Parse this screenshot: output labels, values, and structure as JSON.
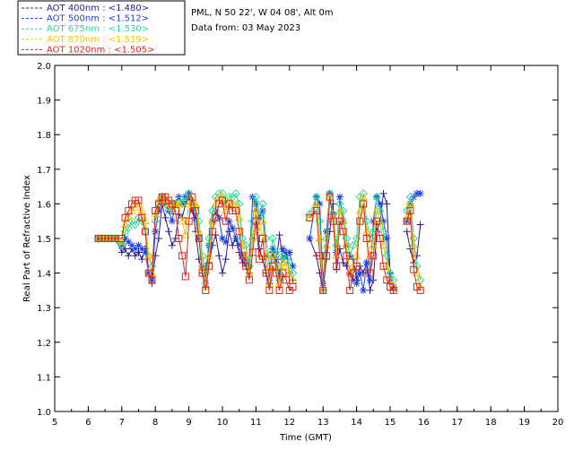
{
  "chart_data": {
    "type": "line",
    "xlabel": "Time (GMT)",
    "ylabel": "Real Part of Refractive Index",
    "xlim": [
      5,
      20
    ],
    "ylim": [
      1.0,
      2.0
    ],
    "xticks": [
      "5",
      "6",
      "7",
      "8",
      "9",
      "10",
      "11",
      "12",
      "13",
      "14",
      "15",
      "16",
      "17",
      "18",
      "19",
      "20"
    ],
    "yticks": [
      "1.0",
      "1.1",
      "1.2",
      "1.3",
      "1.4",
      "1.5",
      "1.6",
      "1.7",
      "1.8",
      "1.9",
      "2.0"
    ],
    "grid": false,
    "legend_position": "top-left",
    "info_lines": [
      "PML, N 50 22', W 04 08', Alt 0m",
      "Data from: 03 May 2023"
    ],
    "series": [
      {
        "name": "AOT  400nm : <1.480>",
        "color": "#2e1a8c",
        "marker": "plus",
        "x": [
          6.3,
          6.4,
          6.5,
          6.6,
          6.7,
          6.8,
          7.0,
          7.1,
          7.2,
          7.3,
          7.4,
          7.5,
          7.6,
          7.7,
          7.8,
          7.9,
          8.0,
          8.1,
          8.2,
          8.3,
          8.4,
          8.5,
          8.6,
          8.7,
          8.8,
          8.9,
          9.0,
          9.1,
          9.2,
          9.3,
          9.4,
          9.5,
          9.6,
          9.7,
          9.8,
          9.9,
          10.0,
          10.1,
          10.2,
          10.3,
          10.4,
          10.5,
          10.6,
          10.7,
          10.8,
          10.9,
          11.0,
          11.1,
          11.2,
          11.3,
          11.4,
          11.5,
          11.6,
          11.7,
          11.8,
          11.9,
          12.0,
          12.1,
          null,
          12.6,
          12.8,
          12.9,
          13.0,
          13.1,
          13.2,
          13.3,
          13.4,
          13.5,
          13.6,
          13.7,
          13.8,
          13.9,
          14.0,
          14.1,
          14.2,
          14.3,
          14.4,
          14.5,
          14.6,
          14.7,
          14.8,
          14.9,
          15.0,
          15.1,
          null,
          15.5,
          15.6,
          15.7,
          15.8,
          15.9
        ],
        "y": [
          1.5,
          1.5,
          1.5,
          1.5,
          1.5,
          1.5,
          1.46,
          1.47,
          1.45,
          1.47,
          1.45,
          1.46,
          1.44,
          1.47,
          1.4,
          1.37,
          1.45,
          1.5,
          1.6,
          1.56,
          1.52,
          1.48,
          1.5,
          1.57,
          1.56,
          1.6,
          1.62,
          1.6,
          1.52,
          1.44,
          1.4,
          1.36,
          1.43,
          1.48,
          1.51,
          1.45,
          1.4,
          1.44,
          1.52,
          1.48,
          1.5,
          1.46,
          1.43,
          1.42,
          1.4,
          1.5,
          1.58,
          1.47,
          1.44,
          1.4,
          1.37,
          1.46,
          1.43,
          1.51,
          1.44,
          1.46,
          1.4,
          1.38,
          null,
          1.5,
          1.45,
          1.4,
          1.35,
          1.44,
          1.52,
          1.6,
          1.41,
          1.47,
          1.43,
          1.42,
          1.45,
          1.44,
          1.38,
          1.42,
          1.4,
          1.43,
          1.35,
          1.38,
          1.52,
          1.55,
          1.63,
          1.6,
          1.4,
          1.35,
          null,
          1.52,
          1.47,
          1.43,
          1.45,
          1.54
        ]
      },
      {
        "name": "AOT  500nm : <1.512>",
        "color": "#1a3fe6",
        "marker": "star",
        "x": [
          6.3,
          6.4,
          6.5,
          6.6,
          6.7,
          6.8,
          7.0,
          7.1,
          7.2,
          7.3,
          7.4,
          7.5,
          7.6,
          7.7,
          7.8,
          7.9,
          8.0,
          8.1,
          8.2,
          8.3,
          8.4,
          8.5,
          8.6,
          8.7,
          8.8,
          8.9,
          9.0,
          9.1,
          9.2,
          9.3,
          9.4,
          9.5,
          9.6,
          9.7,
          9.8,
          9.9,
          10.0,
          10.1,
          10.2,
          10.3,
          10.4,
          10.5,
          10.6,
          10.7,
          10.8,
          10.9,
          11.0,
          11.1,
          11.2,
          11.3,
          11.4,
          11.5,
          11.6,
          11.7,
          11.8,
          11.9,
          12.0,
          12.1,
          null,
          12.6,
          12.8,
          12.9,
          13.0,
          13.1,
          13.2,
          13.3,
          13.4,
          13.5,
          13.6,
          13.7,
          13.8,
          13.9,
          14.0,
          14.1,
          14.2,
          14.3,
          14.4,
          14.5,
          14.6,
          14.7,
          14.8,
          14.9,
          15.0,
          15.1,
          null,
          15.5,
          15.6,
          15.7,
          15.8,
          15.9
        ],
        "y": [
          1.5,
          1.5,
          1.5,
          1.5,
          1.5,
          1.5,
          1.48,
          1.5,
          1.49,
          1.48,
          1.47,
          1.48,
          1.47,
          1.46,
          1.4,
          1.38,
          1.52,
          1.58,
          1.62,
          1.6,
          1.58,
          1.55,
          1.6,
          1.62,
          1.6,
          1.62,
          1.63,
          1.58,
          1.56,
          1.5,
          1.42,
          1.37,
          1.48,
          1.55,
          1.58,
          1.56,
          1.5,
          1.49,
          1.55,
          1.53,
          1.5,
          1.48,
          1.45,
          1.44,
          1.42,
          1.62,
          1.6,
          1.56,
          1.58,
          1.45,
          1.38,
          1.47,
          1.44,
          1.38,
          1.47,
          1.45,
          1.46,
          1.42,
          null,
          1.5,
          1.62,
          1.6,
          1.37,
          1.52,
          1.63,
          1.57,
          1.46,
          1.62,
          1.55,
          1.48,
          1.4,
          1.38,
          1.37,
          1.4,
          1.35,
          1.43,
          1.38,
          1.55,
          1.62,
          1.6,
          1.55,
          1.5,
          1.38,
          1.36,
          null,
          1.55,
          1.6,
          1.62,
          1.63,
          1.63
        ]
      },
      {
        "name": "AOT  675nm : <1.530>",
        "color": "#22d9a0",
        "marker": "diamond",
        "x": [
          6.3,
          6.4,
          6.5,
          6.6,
          6.7,
          6.8,
          7.0,
          7.1,
          7.2,
          7.3,
          7.4,
          7.5,
          7.6,
          7.7,
          7.8,
          7.9,
          8.0,
          8.1,
          8.2,
          8.3,
          8.4,
          8.5,
          8.6,
          8.7,
          8.8,
          8.9,
          9.0,
          9.1,
          9.2,
          9.3,
          9.4,
          9.5,
          9.6,
          9.7,
          9.8,
          9.9,
          10.0,
          10.1,
          10.2,
          10.3,
          10.4,
          10.5,
          10.6,
          10.7,
          10.8,
          10.9,
          11.0,
          11.1,
          11.2,
          11.3,
          11.4,
          11.5,
          11.6,
          11.7,
          11.8,
          11.9,
          12.0,
          12.1,
          null,
          12.6,
          12.8,
          12.9,
          13.0,
          13.1,
          13.2,
          13.3,
          13.4,
          13.5,
          13.6,
          13.7,
          13.8,
          13.9,
          14.0,
          14.1,
          14.2,
          14.3,
          14.4,
          14.5,
          14.6,
          14.7,
          14.8,
          14.9,
          15.0,
          15.1,
          null,
          15.5,
          15.6,
          15.7,
          15.8,
          15.9
        ],
        "y": [
          1.5,
          1.5,
          1.5,
          1.5,
          1.5,
          1.5,
          1.48,
          1.52,
          1.53,
          1.55,
          1.54,
          1.56,
          1.55,
          1.52,
          1.45,
          1.42,
          1.55,
          1.6,
          1.62,
          1.6,
          1.59,
          1.58,
          1.6,
          1.61,
          1.6,
          1.62,
          1.63,
          1.6,
          1.59,
          1.55,
          1.45,
          1.4,
          1.5,
          1.58,
          1.62,
          1.63,
          1.63,
          1.6,
          1.62,
          1.62,
          1.63,
          1.6,
          1.5,
          1.48,
          1.42,
          1.55,
          1.62,
          1.57,
          1.6,
          1.5,
          1.42,
          1.5,
          1.46,
          1.4,
          1.45,
          1.44,
          1.43,
          1.4,
          null,
          1.57,
          1.62,
          1.55,
          1.35,
          1.5,
          1.63,
          1.57,
          1.48,
          1.6,
          1.58,
          1.5,
          1.45,
          1.48,
          1.5,
          1.62,
          1.63,
          1.55,
          1.5,
          1.52,
          1.62,
          1.58,
          1.52,
          1.45,
          1.4,
          1.38,
          null,
          1.58,
          1.62,
          1.5,
          1.42,
          1.38
        ]
      },
      {
        "name": "AOT  870nm : <1.519>",
        "color": "#f5c400",
        "marker": "triangle",
        "x": [
          6.3,
          6.4,
          6.5,
          6.6,
          6.7,
          6.8,
          7.0,
          7.1,
          7.2,
          7.3,
          7.4,
          7.5,
          7.6,
          7.7,
          7.8,
          7.9,
          8.0,
          8.1,
          8.2,
          8.3,
          8.4,
          8.5,
          8.6,
          8.7,
          8.8,
          8.9,
          9.0,
          9.1,
          9.2,
          9.3,
          9.4,
          9.5,
          9.6,
          9.7,
          9.8,
          9.9,
          10.0,
          10.1,
          10.2,
          10.3,
          10.4,
          10.5,
          10.6,
          10.7,
          10.8,
          10.9,
          11.0,
          11.1,
          11.2,
          11.3,
          11.4,
          11.5,
          11.6,
          11.7,
          11.8,
          11.9,
          12.0,
          12.1,
          null,
          12.6,
          12.8,
          12.9,
          13.0,
          13.1,
          13.2,
          13.3,
          13.4,
          13.5,
          13.6,
          13.7,
          13.8,
          13.9,
          14.0,
          14.1,
          14.2,
          14.3,
          14.4,
          14.5,
          14.6,
          14.7,
          14.8,
          14.9,
          15.0,
          15.1,
          null,
          15.5,
          15.6,
          15.7,
          15.8,
          15.9
        ],
        "y": [
          1.5,
          1.5,
          1.5,
          1.5,
          1.5,
          1.5,
          1.49,
          1.54,
          1.56,
          1.58,
          1.59,
          1.6,
          1.58,
          1.55,
          1.45,
          1.4,
          1.57,
          1.61,
          1.62,
          1.61,
          1.6,
          1.59,
          1.6,
          1.6,
          1.55,
          1.51,
          1.6,
          1.61,
          1.6,
          1.52,
          1.42,
          1.36,
          1.45,
          1.55,
          1.6,
          1.62,
          1.62,
          1.58,
          1.61,
          1.6,
          1.6,
          1.56,
          1.48,
          1.45,
          1.4,
          1.5,
          1.58,
          1.52,
          1.55,
          1.45,
          1.37,
          1.45,
          1.42,
          1.37,
          1.43,
          1.42,
          1.4,
          1.38,
          null,
          1.56,
          1.6,
          1.5,
          1.35,
          1.48,
          1.62,
          1.56,
          1.45,
          1.58,
          1.55,
          1.48,
          1.4,
          1.42,
          1.45,
          1.58,
          1.62,
          1.52,
          1.45,
          1.48,
          1.58,
          1.55,
          1.48,
          1.42,
          1.38,
          1.36,
          null,
          1.56,
          1.6,
          1.48,
          1.4,
          1.36
        ]
      },
      {
        "name": "AOT 1020nm : <1.505>",
        "color": "#d9261a",
        "marker": "square",
        "x": [
          6.3,
          6.4,
          6.5,
          6.6,
          6.7,
          6.8,
          7.0,
          7.1,
          7.2,
          7.3,
          7.4,
          7.5,
          7.6,
          7.7,
          7.8,
          7.9,
          8.0,
          8.1,
          8.2,
          8.3,
          8.4,
          8.5,
          8.6,
          8.7,
          8.8,
          8.9,
          9.0,
          9.1,
          9.2,
          9.3,
          9.4,
          9.5,
          9.6,
          9.7,
          9.8,
          9.9,
          10.0,
          10.1,
          10.2,
          10.3,
          10.4,
          10.5,
          10.6,
          10.7,
          10.8,
          10.9,
          11.0,
          11.1,
          11.2,
          11.3,
          11.4,
          11.5,
          11.6,
          11.7,
          11.8,
          11.9,
          12.0,
          12.1,
          null,
          12.6,
          12.8,
          12.9,
          13.0,
          13.1,
          13.2,
          13.3,
          13.4,
          13.5,
          13.6,
          13.7,
          13.8,
          13.9,
          14.0,
          14.1,
          14.2,
          14.3,
          14.4,
          14.5,
          14.6,
          14.7,
          14.8,
          14.9,
          15.0,
          15.1,
          null,
          15.5,
          15.6,
          15.7,
          15.8,
          15.9
        ],
        "y": [
          1.5,
          1.5,
          1.5,
          1.5,
          1.5,
          1.5,
          1.5,
          1.56,
          1.58,
          1.6,
          1.61,
          1.61,
          1.56,
          1.52,
          1.4,
          1.38,
          1.58,
          1.6,
          1.62,
          1.62,
          1.61,
          1.6,
          1.58,
          1.5,
          1.45,
          1.39,
          1.55,
          1.62,
          1.58,
          1.5,
          1.4,
          1.35,
          1.42,
          1.52,
          1.56,
          1.6,
          1.61,
          1.55,
          1.6,
          1.58,
          1.58,
          1.52,
          1.45,
          1.42,
          1.38,
          1.46,
          1.55,
          1.44,
          1.5,
          1.4,
          1.35,
          1.42,
          1.4,
          1.35,
          1.4,
          1.38,
          1.35,
          1.36,
          null,
          1.56,
          1.58,
          1.45,
          1.35,
          1.45,
          1.62,
          1.55,
          1.42,
          1.55,
          1.52,
          1.45,
          1.35,
          1.4,
          1.42,
          1.55,
          1.6,
          1.5,
          1.4,
          1.45,
          1.55,
          1.5,
          1.42,
          1.38,
          1.36,
          1.35,
          null,
          1.55,
          1.58,
          1.41,
          1.36,
          1.35
        ]
      }
    ]
  }
}
